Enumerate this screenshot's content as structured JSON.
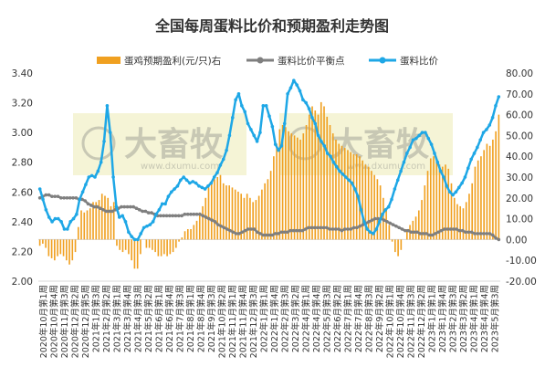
{
  "chart_data": {
    "type": "bar+line",
    "title": "全国每周蛋料比价和预期盈利走势图",
    "legend": [
      "蛋鸡预期盈利(元/只)右",
      "蛋料比价平衡点",
      "蛋料比价"
    ],
    "left_axis": {
      "ylim": [
        2.0,
        3.4
      ],
      "ticks": [
        "2.00",
        "2.20",
        "2.40",
        "2.60",
        "2.80",
        "3.00",
        "3.20",
        "3.40"
      ]
    },
    "right_axis": {
      "ylim": [
        -20,
        80
      ],
      "ticks": [
        "-20.00",
        "-10.00",
        "0.00",
        "10.00",
        "20.00",
        "30.00",
        "40.00",
        "50.00",
        "60.00",
        "70.00",
        "80.00"
      ]
    },
    "x_labels": [
      "2020年10月第1周",
      "2020年10月第4周",
      "2020年11月第3周",
      "2020年12月第2周",
      "2020年12月第5周",
      "2021年1月第3周",
      "2021年2月第2周",
      "2021年3月第1周",
      "2021年3月第4周",
      "2021年4月第3周",
      "2021年5月第2周",
      "2021年6月第1周",
      "2021年6月第4周",
      "2021年7月第3周",
      "2021年8月第1周",
      "2021年8月第4周",
      "2021年9月第3周",
      "2021年10月第2周",
      "2021年11月第1周",
      "2021年11月第4周",
      "2021年12月第3周",
      "2022年1月第1周",
      "2022年1月第4周",
      "2022年2月第3周",
      "2022年3月第2周",
      "2022年4月第1周",
      "2022年4月第4周",
      "2022年5月第3周",
      "2022年6月第2周",
      "2022年7月第1周",
      "2022年7月第4周",
      "2022年8月第3周",
      "2022年9月第2周",
      "2022年10月第1周",
      "2022年10月第4周",
      "2022年11月第3周",
      "2022年12月第2周",
      "2023年1月第1周",
      "2023年1月第4周",
      "2023年2月第3周",
      "2023年3月第2周",
      "2023年4月第1周",
      "2023年4月第4周",
      "2023年5月第3周"
    ],
    "series": [
      {
        "name": "蛋鸡预期盈利(元/只)右",
        "type": "bar",
        "axis": "right",
        "values": [
          -3,
          -2,
          -4,
          -8,
          -9,
          -10,
          -8,
          -7,
          -8,
          -10,
          -12,
          -10,
          -6,
          6,
          14,
          13,
          14,
          15,
          18,
          18,
          19,
          22,
          21,
          20,
          16,
          18,
          -3,
          -5,
          -6,
          -5,
          -7,
          -10,
          -14,
          -14,
          -7,
          0,
          -4,
          -4,
          -5,
          -6,
          -8,
          -8,
          -7,
          -8,
          -7,
          -6,
          -4,
          -1,
          1,
          4,
          5,
          5,
          7,
          9,
          13,
          16,
          20,
          25,
          28,
          29,
          30,
          31,
          27,
          26,
          26,
          25,
          24,
          23,
          22,
          20,
          22,
          20,
          18,
          19,
          21,
          24,
          27,
          29,
          33,
          40,
          46,
          53,
          55,
          54,
          52,
          51,
          50,
          49,
          48,
          51,
          55,
          60,
          64,
          62,
          60,
          66,
          64,
          59,
          55,
          51,
          48,
          46,
          45,
          44,
          43,
          42,
          41,
          41,
          40,
          38,
          36,
          35,
          33,
          31,
          29,
          26,
          20,
          14,
          7,
          -1,
          -6,
          -8,
          -5,
          0,
          5,
          7,
          9,
          11,
          14,
          19,
          26,
          33,
          39,
          40,
          38,
          36,
          35,
          36,
          34,
          27,
          20,
          17,
          16,
          15,
          18,
          22,
          27,
          35,
          38,
          40,
          43,
          46,
          45,
          48,
          52,
          60
        ]
      },
      {
        "name": "蛋料比价平衡点",
        "type": "line",
        "axis": "left",
        "values": [
          2.56,
          2.57,
          2.58,
          2.58,
          2.57,
          2.57,
          2.57,
          2.56,
          2.56,
          2.56,
          2.56,
          2.56,
          2.56,
          2.55,
          2.55,
          2.54,
          2.52,
          2.51,
          2.5,
          2.5,
          2.49,
          2.48,
          2.47,
          2.47,
          2.47,
          2.48,
          2.49,
          2.5,
          2.5,
          2.5,
          2.5,
          2.5,
          2.49,
          2.48,
          2.47,
          2.47,
          2.46,
          2.46,
          2.45,
          2.44,
          2.44,
          2.44,
          2.44,
          2.44,
          2.44,
          2.44,
          2.44,
          2.44,
          2.45,
          2.45,
          2.45,
          2.45,
          2.45,
          2.45,
          2.44,
          2.43,
          2.42,
          2.41,
          2.4,
          2.38,
          2.37,
          2.36,
          2.35,
          2.34,
          2.33,
          2.32,
          2.32,
          2.33,
          2.34,
          2.35,
          2.35,
          2.35,
          2.33,
          2.32,
          2.31,
          2.31,
          2.31,
          2.31,
          2.32,
          2.32,
          2.33,
          2.33,
          2.33,
          2.34,
          2.34,
          2.34,
          2.34,
          2.34,
          2.35,
          2.36,
          2.36,
          2.36,
          2.36,
          2.36,
          2.36,
          2.36,
          2.35,
          2.35,
          2.35,
          2.35,
          2.34,
          2.35,
          2.35,
          2.35,
          2.36,
          2.36,
          2.37,
          2.38,
          2.39,
          2.4,
          2.41,
          2.42,
          2.42,
          2.42,
          2.41,
          2.4,
          2.39,
          2.38,
          2.37,
          2.36,
          2.35,
          2.34,
          2.34,
          2.33,
          2.33,
          2.33,
          2.32,
          2.32,
          2.32,
          2.31,
          2.31,
          2.32,
          2.33,
          2.34,
          2.35,
          2.35,
          2.35,
          2.35,
          2.35,
          2.34,
          2.34,
          2.33,
          2.33,
          2.33,
          2.32,
          2.32,
          2.32,
          2.32,
          2.32,
          2.32,
          2.31,
          2.29,
          2.28
        ]
      },
      {
        "name": "蛋料比价",
        "type": "line",
        "axis": "left",
        "values": [
          2.62,
          2.55,
          2.48,
          2.43,
          2.4,
          2.42,
          2.42,
          2.4,
          2.35,
          2.35,
          2.4,
          2.42,
          2.45,
          2.55,
          2.6,
          2.65,
          2.7,
          2.71,
          2.7,
          2.74,
          2.8,
          2.94,
          3.18,
          3.0,
          2.7,
          2.5,
          2.43,
          2.44,
          2.4,
          2.33,
          2.3,
          2.28,
          2.28,
          2.32,
          2.36,
          2.37,
          2.38,
          2.4,
          2.45,
          2.48,
          2.52,
          2.52,
          2.57,
          2.6,
          2.62,
          2.64,
          2.68,
          2.7,
          2.68,
          2.66,
          2.67,
          2.66,
          2.64,
          2.63,
          2.62,
          2.64,
          2.66,
          2.7,
          2.73,
          2.78,
          2.82,
          2.88,
          2.98,
          3.1,
          3.22,
          3.26,
          3.18,
          3.14,
          3.06,
          3.02,
          2.98,
          2.94,
          3.0,
          3.18,
          3.18,
          3.11,
          3.04,
          2.92,
          2.88,
          2.91,
          3.06,
          3.26,
          3.3,
          3.35,
          3.32,
          3.28,
          3.22,
          3.2,
          3.16,
          3.1,
          3.06,
          2.98,
          2.94,
          2.91,
          2.86,
          2.84,
          2.8,
          2.77,
          2.74,
          2.72,
          2.7,
          2.68,
          2.66,
          2.62,
          2.57,
          2.48,
          2.4,
          2.35,
          2.33,
          2.32,
          2.35,
          2.4,
          2.45,
          2.48,
          2.5,
          2.55,
          2.62,
          2.68,
          2.74,
          2.8,
          2.86,
          2.9,
          2.95,
          2.96,
          2.98,
          3.0,
          3.0,
          2.96,
          2.92,
          2.86,
          2.8,
          2.74,
          2.7,
          2.64,
          2.6,
          2.58,
          2.6,
          2.63,
          2.66,
          2.7,
          2.76,
          2.82,
          2.86,
          2.9,
          2.95,
          3.0,
          3.02,
          3.05,
          3.1,
          3.18,
          3.24
        ]
      }
    ],
    "colors": {
      "bar": "#f0a020",
      "balance": "#7f7f7f",
      "ratio": "#1ea7e6",
      "axis": "#d9d9d9"
    },
    "watermark": {
      "brand": "大畜牧",
      "url": "www.dxumu.com"
    },
    "grid": false,
    "legend_position": "top"
  }
}
